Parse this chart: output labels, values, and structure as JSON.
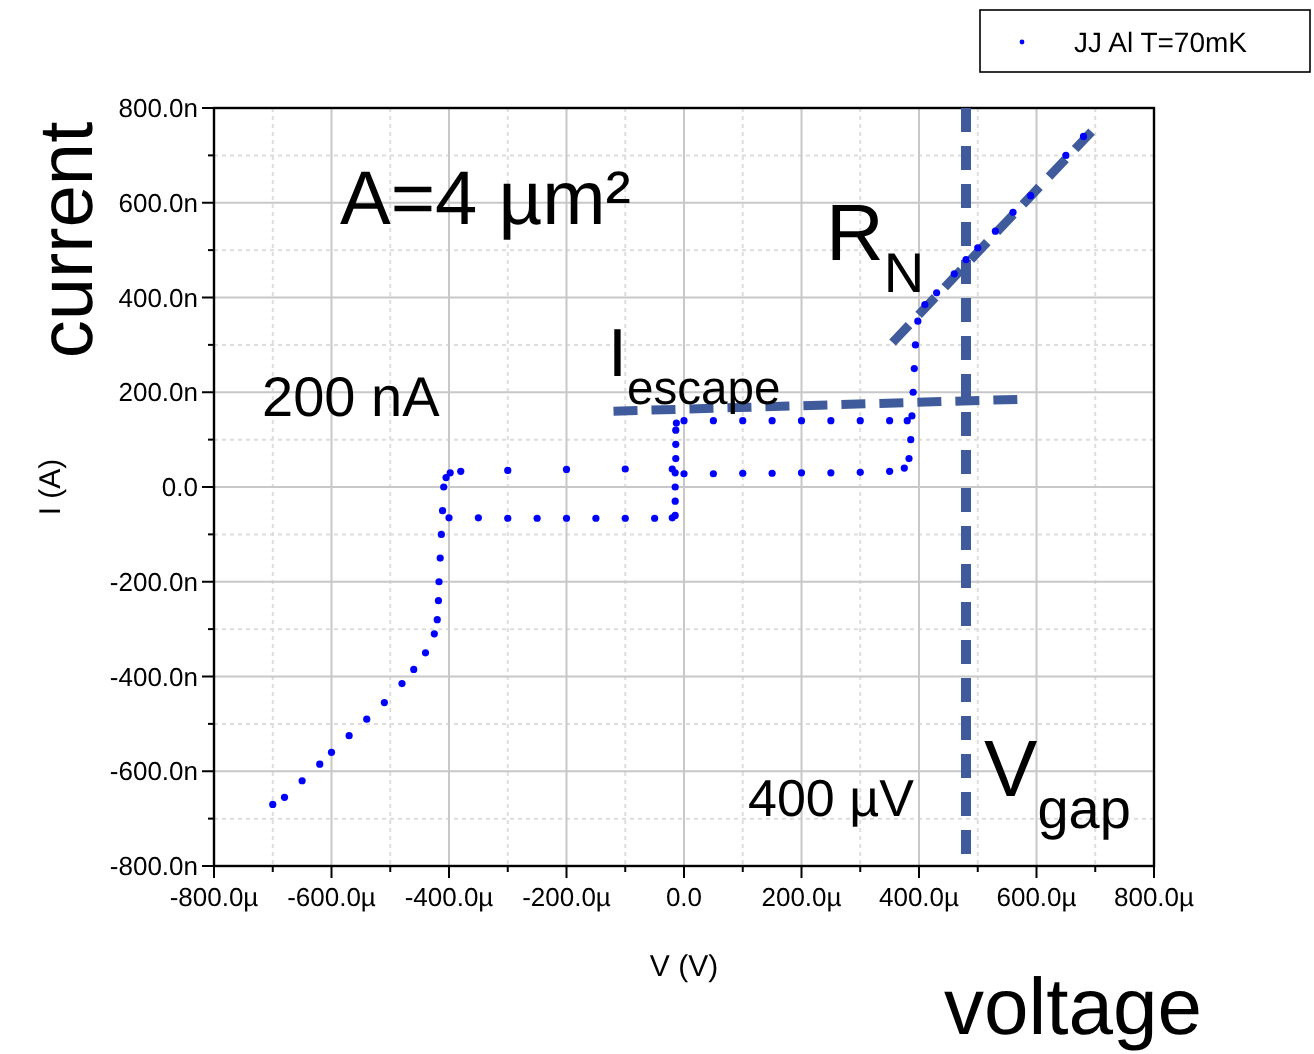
{
  "chart_data": {
    "type": "scatter",
    "xlabel": "V (V)",
    "ylabel": "I (A)",
    "xlim": [
      -800,
      800
    ],
    "xticks": [
      {
        "value": -800,
        "label": "-800.0µ"
      },
      {
        "value": -600,
        "label": "-600.0µ"
      },
      {
        "value": -400,
        "label": "-400.0µ"
      },
      {
        "value": -200,
        "label": "-200.0µ"
      },
      {
        "value": 0,
        "label": "0.0"
      },
      {
        "value": 200,
        "label": "200.0µ"
      },
      {
        "value": 400,
        "label": "400.0µ"
      },
      {
        "value": 600,
        "label": "600.0µ"
      },
      {
        "value": 800,
        "label": "800.0µ"
      }
    ],
    "ylim": [
      -800,
      800
    ],
    "yticks": [
      {
        "value": -800,
        "label": "-800.0n"
      },
      {
        "value": -600,
        "label": "-600.0n"
      },
      {
        "value": -400,
        "label": "-400.0n"
      },
      {
        "value": -200,
        "label": "-200.0n"
      },
      {
        "value": 0,
        "label": "0.0"
      },
      {
        "value": 200,
        "label": "200.0n"
      },
      {
        "value": 400,
        "label": "400.0n"
      },
      {
        "value": 600,
        "label": "600.0n"
      },
      {
        "value": 800,
        "label": "800.0n"
      }
    ],
    "grid": true,
    "legend": "top right",
    "marker": "circle",
    "series": [
      {
        "name": "JJ Al T=70mK",
        "color": "#0000ff",
        "x": [
          -700,
          -680,
          -650,
          -620,
          -600,
          -570,
          -540,
          -510,
          -480,
          -460,
          -440,
          -425,
          -420,
          -418,
          -417,
          -415,
          -413,
          -411,
          -409,
          -405,
          -398,
          -380,
          -300,
          -200,
          -100,
          -20,
          -400,
          -350,
          -300,
          -250,
          -200,
          -150,
          -100,
          -50,
          -20,
          -15,
          -15,
          -15,
          -15,
          -14,
          -14,
          -14,
          -13,
          0,
          50,
          100,
          150,
          200,
          250,
          300,
          350,
          380,
          0,
          50,
          100,
          150,
          200,
          250,
          300,
          350,
          375,
          383,
          386,
          388,
          390,
          392,
          394,
          398,
          410,
          430,
          460,
          480,
          500,
          530,
          560,
          590,
          650,
          680
        ],
        "values": [
          -670,
          -655,
          -620,
          -585,
          -560,
          -525,
          -490,
          -455,
          -415,
          -385,
          -350,
          -310,
          -280,
          -240,
          -200,
          -150,
          -100,
          -50,
          0,
          20,
          30,
          33,
          35,
          37,
          38,
          38,
          -65,
          -65,
          -66,
          -66,
          -66,
          -66,
          -66,
          -66,
          -65,
          -60,
          -30,
          0,
          30,
          60,
          90,
          120,
          135,
          140,
          140,
          140,
          140,
          140,
          140,
          140,
          140,
          140,
          28,
          28,
          29,
          29,
          30,
          30,
          31,
          33,
          40,
          60,
          100,
          150,
          200,
          250,
          300,
          350,
          385,
          410,
          450,
          480,
          505,
          540,
          580,
          615,
          700,
          740
        ]
      },
      {
        "color": "#3f5b9c",
        "type": "line",
        "line_style": "dashed",
        "marker": "none",
        "x": [
          -120,
          570
        ],
        "values": [
          160,
          185
        ]
      },
      {
        "color": "#3f5b9c",
        "type": "line",
        "line_style": "dashed",
        "marker": "none",
        "x": [
          355,
          705
        ],
        "values": [
          305,
          765
        ]
      }
    ],
    "ref_lines": [
      {
        "axis": "x",
        "value": 480,
        "color": "#3f5b9c",
        "line_style": "dashed"
      }
    ],
    "annotations": [
      "A=4 µm²",
      "R$_{N}$",
      "I$_{escape}$",
      "200 nA",
      "400 µV",
      "V$_{gap}$",
      "current",
      "voltage"
    ]
  }
}
